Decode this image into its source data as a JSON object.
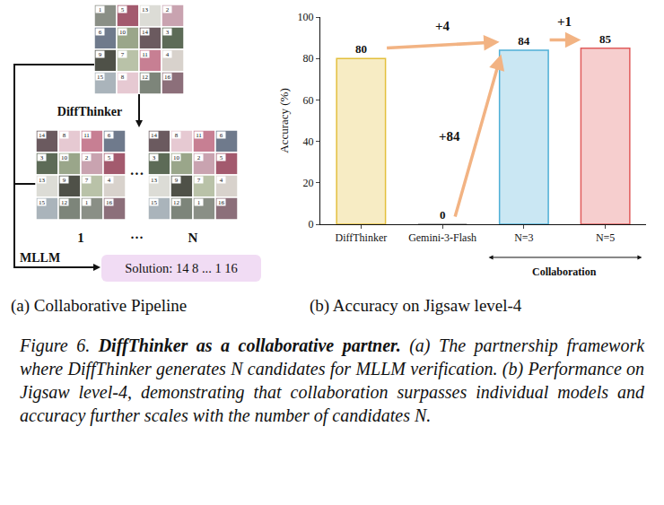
{
  "panel_a": {
    "subcaption": "(a) Collaborative Pipeline",
    "input_tiles": [
      1,
      5,
      13,
      2,
      6,
      10,
      14,
      3,
      9,
      7,
      11,
      4,
      15,
      8,
      12,
      16
    ],
    "generator": "DiffThinker",
    "candidates": [
      {
        "label": "1",
        "tiles": [
          14,
          8,
          11,
          6,
          3,
          10,
          2,
          5,
          13,
          9,
          7,
          4,
          15,
          12,
          1,
          16
        ]
      },
      {
        "label": "N",
        "tiles": [
          14,
          8,
          11,
          6,
          3,
          10,
          2,
          5,
          13,
          9,
          7,
          4,
          15,
          12,
          1,
          16
        ]
      }
    ],
    "ellipsis": "···",
    "verifier": "MLLM",
    "solution": "Solution: 14 8 ... 1 16"
  },
  "chart_data": {
    "type": "bar",
    "subcaption": "(b) Accuracy on Jigsaw level-4",
    "y_label": "Accuracy (%)",
    "categories": [
      "DiffThinker",
      "Gemini-3-Flash",
      "N=3",
      "N=5"
    ],
    "values": [
      80,
      0,
      84,
      85
    ],
    "colors": [
      "#e3bf3c",
      "#999999",
      "#4fb0d6",
      "#e05c5c"
    ],
    "ylim": [
      0,
      100
    ],
    "yticks": [
      0,
      20,
      40,
      60,
      80,
      100
    ],
    "grid": false,
    "data_labels": true,
    "annotations": [
      {
        "text": "+4",
        "from": "DiffThinker",
        "to": "N=3"
      },
      {
        "text": "+84",
        "from": "Gemini-3-Flash",
        "to": "N=3"
      },
      {
        "text": "+1",
        "from": "N=3",
        "to": "N=5"
      }
    ],
    "group": {
      "text": "Collaboration",
      "categories": [
        "N=3",
        "N=5"
      ]
    }
  },
  "caption": {
    "label": "Figure 6.",
    "title": "DiffThinker as a collaborative partner.",
    "text": "(a) The partnership framework where DiffThinker generates N candidates for MLLM verification. (b) Performance on Jigsaw level-4, demonstrating that collaboration surpasses individual models and accuracy further scales with the number of candidates N."
  }
}
